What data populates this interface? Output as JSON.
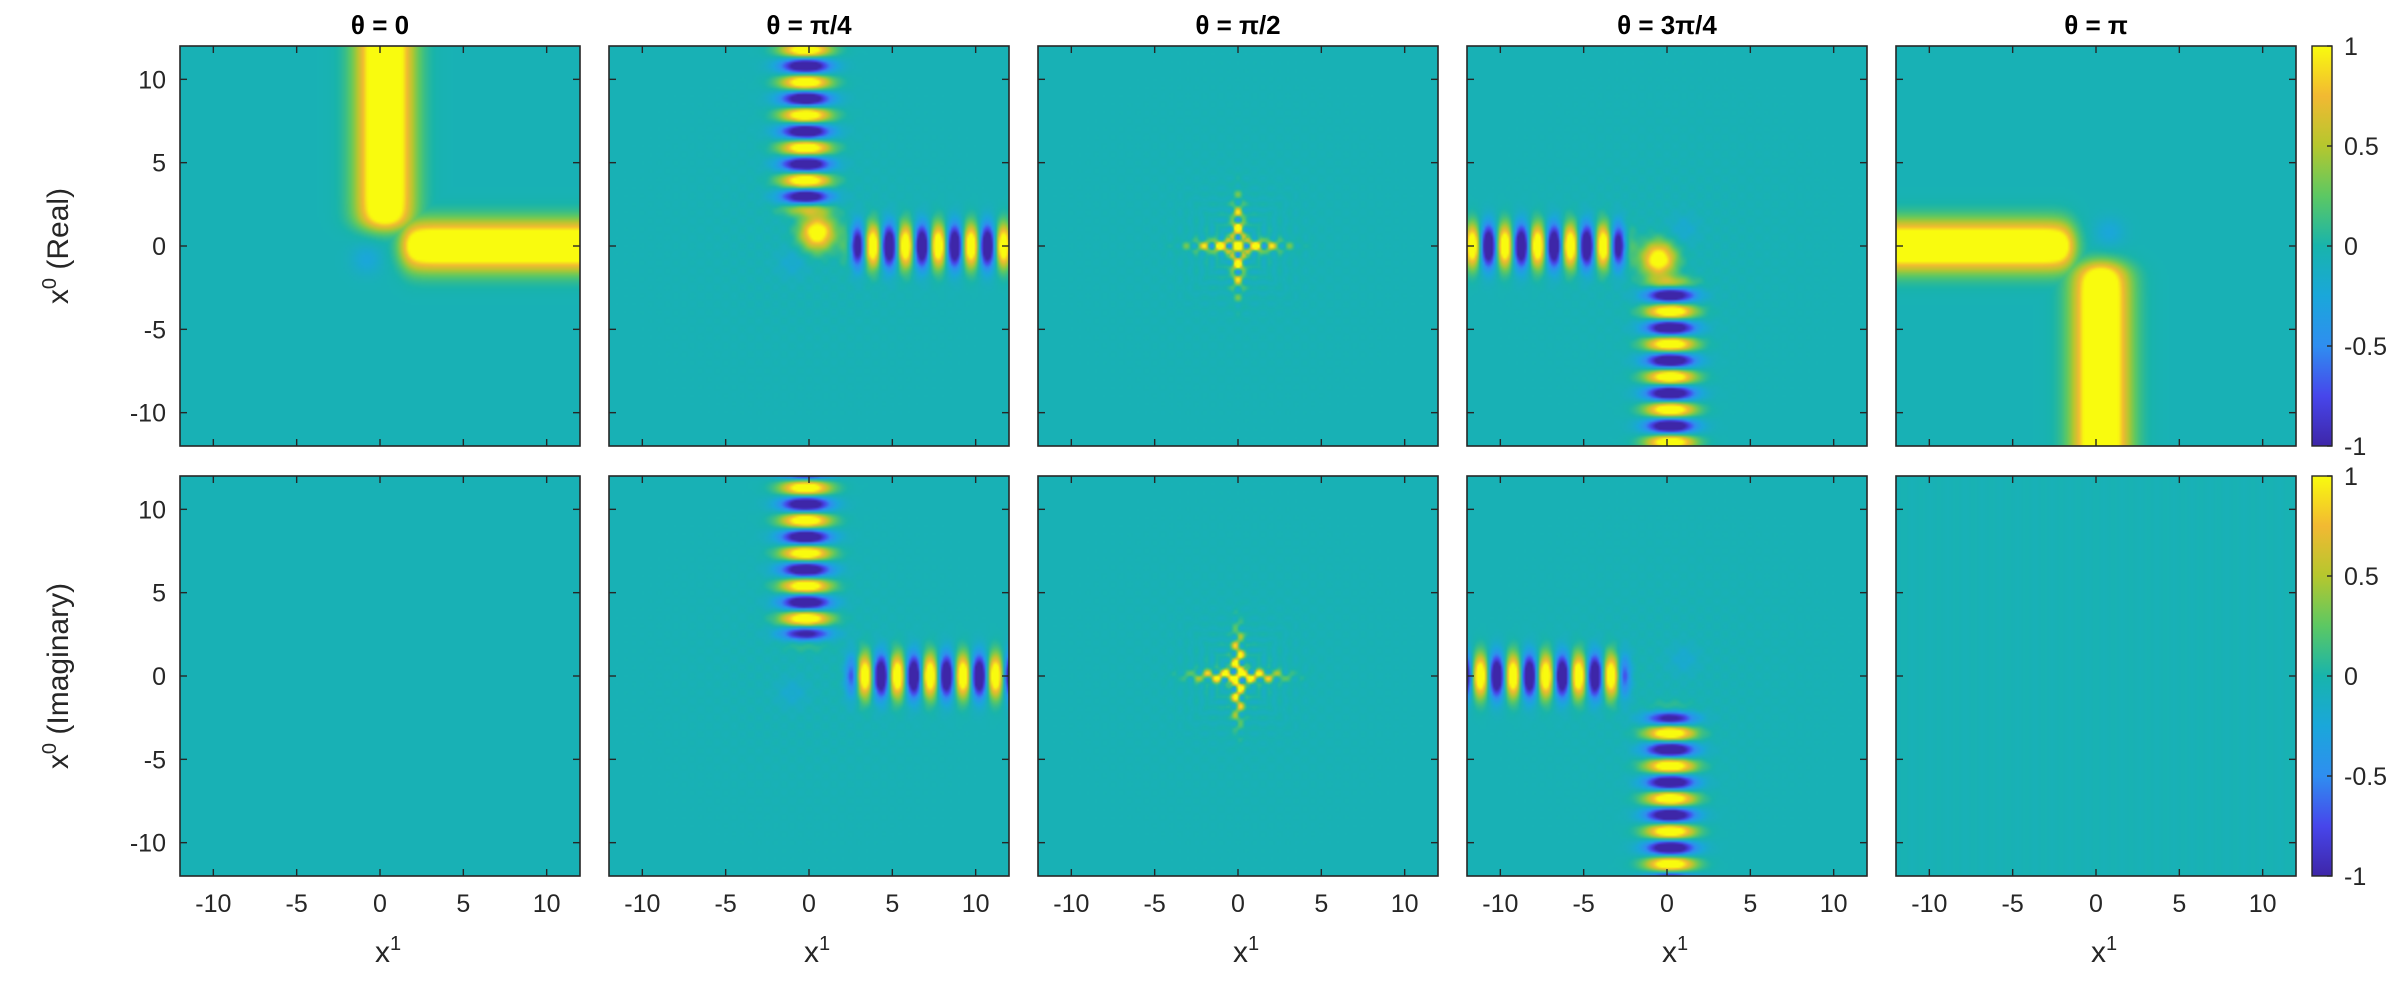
{
  "chart_data": {
    "type": "heatmap",
    "colormap": "parula",
    "panel_titles": [
      "θ = 0",
      "θ = π/4",
      "θ = π/2",
      "θ = 3π/4",
      "θ = π"
    ],
    "row_labels": [
      "x⁰ (Real)",
      "x⁰ (Imaginary)"
    ],
    "xlabel": "x¹",
    "x_ticks": [
      "-10",
      "-5",
      "0",
      "5",
      "10"
    ],
    "y_ticks": [
      "10",
      "5",
      "0",
      "-5",
      "-10"
    ],
    "x_range": [
      -12,
      12
    ],
    "y_range": [
      -12,
      12
    ],
    "colorbar_ticks": [
      "1",
      "0.5",
      "0",
      "-0.5",
      "-1"
    ],
    "clim": [
      -1,
      1
    ],
    "background_value": -0.05,
    "colors": {
      "yellow": "#f9fb0e",
      "teal": "#18b4ac",
      "blue": "#3e26a8"
    }
  }
}
